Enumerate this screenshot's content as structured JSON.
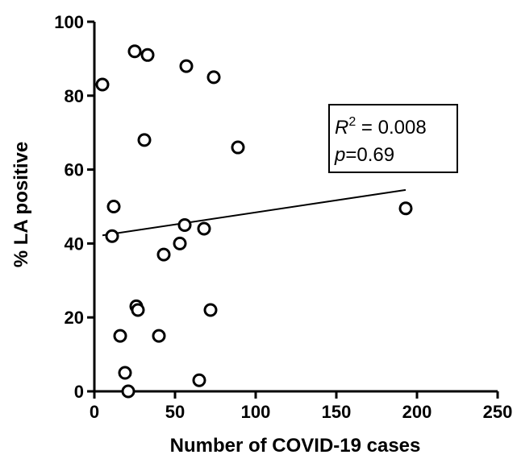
{
  "chart_data": {
    "type": "scatter",
    "title": "",
    "xlabel": "Number of COVID-19 cases",
    "ylabel": "% LA positive",
    "xlim": [
      0,
      250
    ],
    "ylim": [
      0,
      100
    ],
    "xticks": [
      "0",
      "50",
      "100",
      "150",
      "200",
      "250"
    ],
    "yticks": [
      "0",
      "20",
      "40",
      "60",
      "80",
      "100"
    ],
    "grid": false,
    "legend": "none",
    "points": [
      {
        "x": 5,
        "y": 83
      },
      {
        "x": 25,
        "y": 92
      },
      {
        "x": 33,
        "y": 91
      },
      {
        "x": 57,
        "y": 88
      },
      {
        "x": 74,
        "y": 85
      },
      {
        "x": 89,
        "y": 66
      },
      {
        "x": 31,
        "y": 68
      },
      {
        "x": 12,
        "y": 50
      },
      {
        "x": 11,
        "y": 42
      },
      {
        "x": 56,
        "y": 45
      },
      {
        "x": 68,
        "y": 44
      },
      {
        "x": 53,
        "y": 40
      },
      {
        "x": 43,
        "y": 37
      },
      {
        "x": 193,
        "y": 49.5
      },
      {
        "x": 26,
        "y": 23
      },
      {
        "x": 27,
        "y": 22
      },
      {
        "x": 72,
        "y": 22
      },
      {
        "x": 16,
        "y": 15
      },
      {
        "x": 40,
        "y": 15
      },
      {
        "x": 19,
        "y": 5
      },
      {
        "x": 65,
        "y": 3
      },
      {
        "x": 21,
        "y": 0
      }
    ],
    "fit_line": {
      "x": [
        5,
        193
      ],
      "y": [
        42.2,
        54.5
      ]
    },
    "annotation": {
      "r_symbol": "R",
      "r_superscript": "2",
      "r_value": " = 0.008",
      "p_symbol": "p",
      "p_value": "=0.69"
    }
  }
}
